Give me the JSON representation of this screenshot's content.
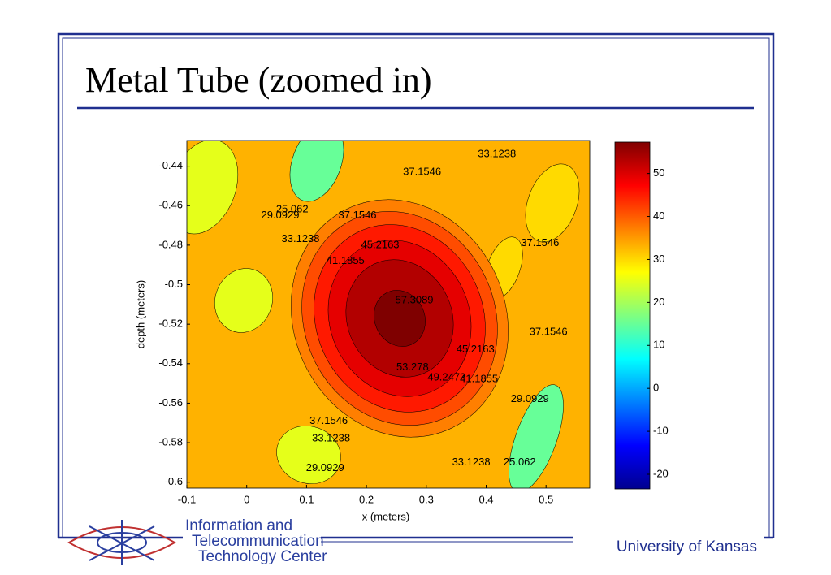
{
  "chart_data": {
    "type": "contour",
    "title": "Metal Tube (zoomed in)",
    "x_label": "x (meters)",
    "y_label": "depth (meters)",
    "xlim": [
      -0.1,
      0.573
    ],
    "ylim": [
      -0.603,
      -0.427
    ],
    "xticks": [
      -0.1,
      0,
      0.1,
      0.2,
      0.3,
      0.4,
      0.5
    ],
    "yticks": [
      -0.6,
      -0.58,
      -0.56,
      -0.54,
      -0.52,
      -0.5,
      -0.48,
      -0.46,
      -0.44
    ],
    "clim": [
      -23.4,
      57.3
    ],
    "cticks": [
      -20,
      -10,
      0,
      10,
      20,
      30,
      40,
      50
    ],
    "colormap": "jet",
    "levels": [
      37.1546,
      41.1855,
      45.2163,
      49.2472,
      53.278,
      57.3089
    ],
    "background_level": 33.1238,
    "contour_labels": [
      {
        "x": 0.293,
        "y": -0.443,
        "value": 37.1546
      },
      {
        "x": 0.418,
        "y": -0.434,
        "value": 33.1238
      },
      {
        "x": 0.076,
        "y": -0.462,
        "value": 25.062
      },
      {
        "x": 0.056,
        "y": -0.465,
        "value": 29.0929
      },
      {
        "x": 0.185,
        "y": -0.465,
        "value": 37.1546
      },
      {
        "x": 0.09,
        "y": -0.477,
        "value": 33.1238
      },
      {
        "x": 0.165,
        "y": -0.488,
        "value": 41.1855
      },
      {
        "x": 0.223,
        "y": -0.48,
        "value": 45.2163
      },
      {
        "x": 0.49,
        "y": -0.479,
        "value": 37.1546
      },
      {
        "x": 0.28,
        "y": -0.508,
        "value": 57.3089
      },
      {
        "x": 0.504,
        "y": -0.524,
        "value": 37.1546
      },
      {
        "x": 0.382,
        "y": -0.533,
        "value": 45.2163
      },
      {
        "x": 0.277,
        "y": -0.542,
        "value": 53.278
      },
      {
        "x": 0.334,
        "y": -0.547,
        "value": 49.2472
      },
      {
        "x": 0.388,
        "y": -0.548,
        "value": 41.1855
      },
      {
        "x": 0.473,
        "y": -0.558,
        "value": 29.0929
      },
      {
        "x": 0.137,
        "y": -0.569,
        "value": 37.1546
      },
      {
        "x": 0.141,
        "y": -0.578,
        "value": 33.1238
      },
      {
        "x": 0.131,
        "y": -0.593,
        "value": 29.0929
      },
      {
        "x": 0.375,
        "y": -0.59,
        "value": 33.1238
      },
      {
        "x": 0.456,
        "y": -0.59,
        "value": 25.062
      }
    ]
  },
  "footer": {
    "org_line1": "Information and",
    "org_line2": "Telecommunication",
    "org_line3": "Technology Center",
    "university": "University of Kansas"
  }
}
